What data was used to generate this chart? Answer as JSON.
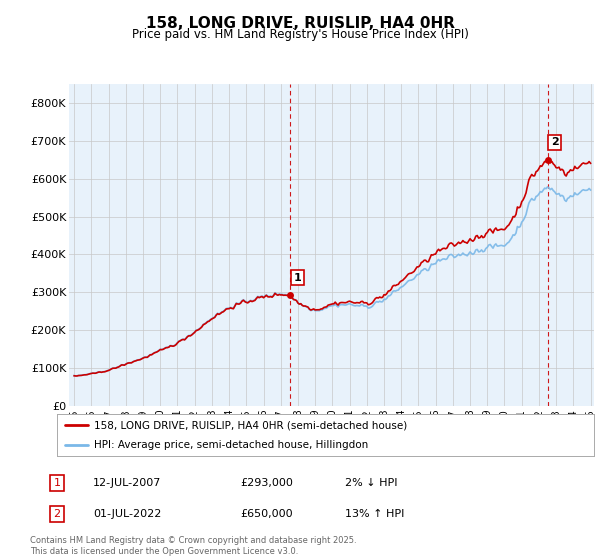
{
  "title": "158, LONG DRIVE, RUISLIP, HA4 0HR",
  "subtitle": "Price paid vs. HM Land Registry's House Price Index (HPI)",
  "legend_line1": "158, LONG DRIVE, RUISLIP, HA4 0HR (semi-detached house)",
  "legend_line2": "HPI: Average price, semi-detached house, Hillingdon",
  "annotation1_label": "1",
  "annotation1_date": "12-JUL-2007",
  "annotation1_price": "£293,000",
  "annotation1_hpi": "2% ↓ HPI",
  "annotation2_label": "2",
  "annotation2_date": "01-JUL-2022",
  "annotation2_price": "£650,000",
  "annotation2_hpi": "13% ↑ HPI",
  "footer": "Contains HM Land Registry data © Crown copyright and database right 2025.\nThis data is licensed under the Open Government Licence v3.0.",
  "hpi_color": "#7ab8e8",
  "price_color": "#cc0000",
  "vline_color": "#cc0000",
  "background_color": "#ffffff",
  "plot_bg_color": "#e8f2fb",
  "grid_color": "#c8c8c8",
  "ylim": [
    0,
    850000
  ],
  "yticks": [
    0,
    100000,
    200000,
    300000,
    400000,
    500000,
    600000,
    700000,
    800000
  ],
  "ytick_labels": [
    "£0",
    "£100K",
    "£200K",
    "£300K",
    "£400K",
    "£500K",
    "£600K",
    "£700K",
    "£800K"
  ],
  "year_start": 1995,
  "year_end": 2025,
  "sale1_year": 2007.54,
  "sale1_price": 293000,
  "sale2_year": 2022.5,
  "sale2_price": 650000,
  "sale1_hpi_at_sale": 295000,
  "sale2_hpi_at_sale": 575000
}
